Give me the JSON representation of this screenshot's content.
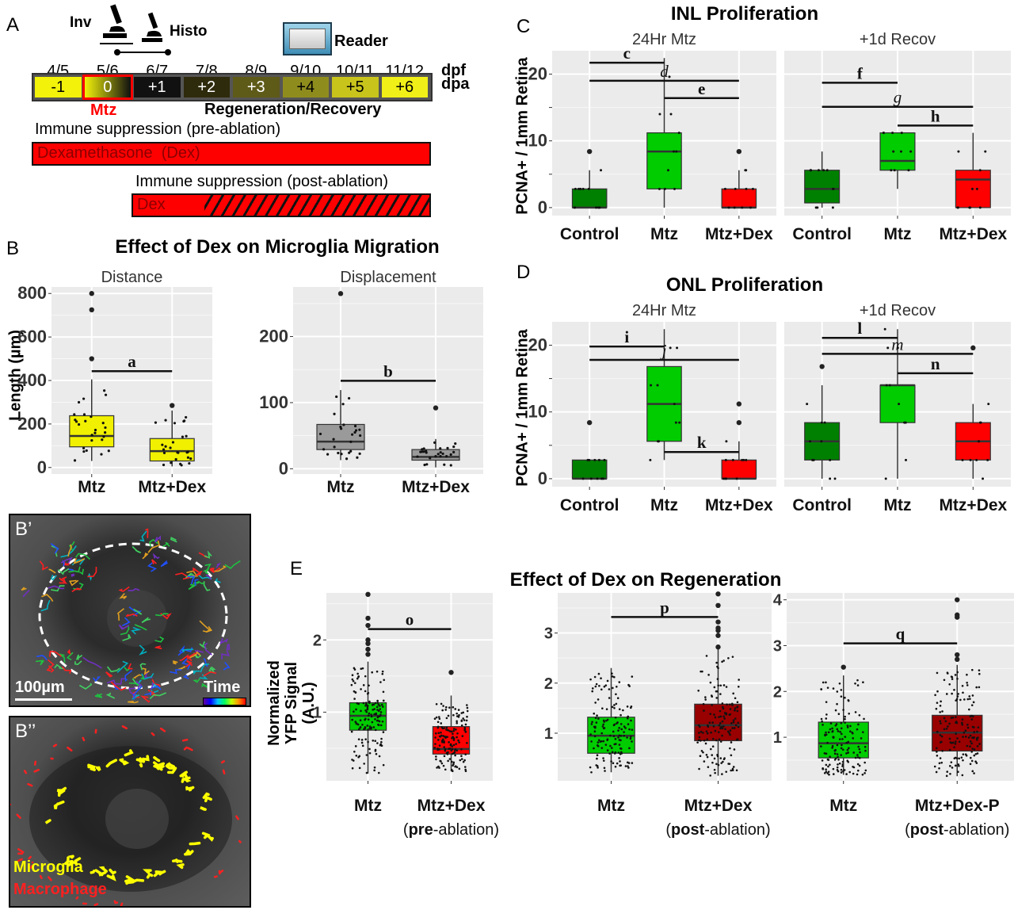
{
  "panel_labels": {
    "A": "A",
    "B": "B",
    "C": "C",
    "D": "D",
    "E": "E",
    "B1": "B’",
    "B2": "B’’"
  },
  "timeline": {
    "inv_label": "Inv",
    "histo_label": "Histo",
    "reader_label": "Reader",
    "dpf_label": "dpf",
    "dpa_label": "dpa",
    "dpf": [
      "4/5",
      "5/6",
      "6/7",
      "7/8",
      "8/9",
      "9/10",
      "10/11",
      "11/12"
    ],
    "dpa": [
      "-1",
      "0",
      "+1",
      "+2",
      "+3",
      "+4",
      "+5",
      "+6"
    ],
    "dpa_colors": [
      "#f2f20a",
      "#8f8a1a",
      "#111111",
      "#2e2a0c",
      "#5e5a18",
      "#8f8c1e",
      "#c8c41c",
      "#f0ef18"
    ],
    "dpa_text_colors": [
      "#000",
      "#fff",
      "#fff",
      "#fff",
      "#fff",
      "#000",
      "#000",
      "#000"
    ],
    "mtz_label": "Mtz",
    "regen_label": "Regeneration/Recovery",
    "pre_label": "Immune suppression (pre-ablation)",
    "pre_bar": "Dexamethasone  (Dex)",
    "post_label": "Immune suppression (post-ablation)",
    "post_bar": "Dex",
    "accent": "#ff0000"
  },
  "micro": {
    "scale_label": "100µm",
    "time_label": "Time",
    "microglia_label": "Microglia",
    "macrophage_label": "Macrophage"
  },
  "chart_data": [
    {
      "id": "B-distance",
      "type": "box",
      "title": "Effect of Dex on Microglia Migration",
      "facet": "Distance",
      "ylabel": "Length (µm)",
      "ylim": [
        -30,
        830
      ],
      "yticks": [
        0,
        200,
        400,
        600,
        800
      ],
      "categories": [
        "Mtz",
        "Mtz+Dex"
      ],
      "series": [
        {
          "name": "Mtz",
          "color": "#f0f000",
          "q1": 95,
          "median": 145,
          "q3": 238,
          "whisker_low": 30,
          "whisker_high": 405,
          "outliers": [
            500,
            725,
            800
          ]
        },
        {
          "name": "Mtz+Dex",
          "color": "#f0f000",
          "q1": 30,
          "median": 75,
          "q3": 133,
          "whisker_low": 5,
          "whisker_high": 262,
          "outliers": [
            285
          ]
        }
      ],
      "significance": [
        {
          "label": "a",
          "from": 0,
          "to": 1,
          "y": 443
        }
      ]
    },
    {
      "id": "B-displacement",
      "type": "box",
      "facet": "Displacement",
      "ylim": [
        -8,
        275
      ],
      "yticks": [
        0,
        100,
        200
      ],
      "categories": [
        "Mtz",
        "Mtz+Dex"
      ],
      "series": [
        {
          "name": "Mtz",
          "color": "#9a9a9a",
          "q1": 29,
          "median": 41,
          "q3": 67,
          "whisker_low": 13,
          "whisker_high": 119,
          "outliers": [
            265
          ]
        },
        {
          "name": "Mtz+Dex",
          "color": "#9a9a9a",
          "q1": 13,
          "median": 18,
          "q3": 29,
          "whisker_low": 2,
          "whisker_high": 45,
          "outliers": [
            92
          ]
        }
      ],
      "significance": [
        {
          "label": "b",
          "from": 0,
          "to": 1,
          "y": 133
        }
      ]
    },
    {
      "id": "C",
      "type": "box",
      "title": "INL Proliferation",
      "ylabel": "PCNA+ / 1mm Retina",
      "ylim": [
        -1.2,
        23.5
      ],
      "yticks": [
        0,
        10,
        20
      ],
      "facets": [
        {
          "name": "24Hr Mtz",
          "categories": [
            "Control",
            "Mtz",
            "Mtz+Dex"
          ],
          "series": [
            {
              "name": "Control",
              "color": "#008000",
              "q1": 0,
              "median": 0,
              "q3": 2.8,
              "whisker_low": 0,
              "whisker_high": 5.6,
              "outliers": [
                8.4
              ]
            },
            {
              "name": "Mtz",
              "color": "#00cc00",
              "q1": 2.8,
              "median": 8.4,
              "q3": 11.2,
              "whisker_low": 0,
              "whisker_high": 22.4,
              "outliers": []
            },
            {
              "name": "Mtz+Dex",
              "color": "#ff0000",
              "q1": 0,
              "median": 0,
              "q3": 2.8,
              "whisker_low": 0,
              "whisker_high": 5.6,
              "outliers": [
                8.4
              ]
            }
          ],
          "significance": [
            {
              "label": "c",
              "from": 0,
              "to": 1,
              "y": 21.7,
              "italic": false
            },
            {
              "label": "d",
              "from": 0,
              "to": 2,
              "y": 19,
              "italic": true
            },
            {
              "label": "e",
              "from": 1,
              "to": 2,
              "y": 16.4,
              "italic": false
            }
          ]
        },
        {
          "name": "+1d Recov",
          "categories": [
            "Control",
            "Mtz",
            "Mtz+Dex"
          ],
          "series": [
            {
              "name": "Control",
              "color": "#008000",
              "q1": 0.7,
              "median": 2.8,
              "q3": 5.6,
              "whisker_low": 0,
              "whisker_high": 8.4,
              "outliers": []
            },
            {
              "name": "Mtz",
              "color": "#00cc00",
              "q1": 5.6,
              "median": 7,
              "q3": 11.2,
              "whisker_low": 2.8,
              "whisker_high": 11.2,
              "outliers": []
            },
            {
              "name": "Mtz+Dex",
              "color": "#ff0000",
              "q1": 0,
              "median": 4.2,
              "q3": 5.6,
              "whisker_low": 0,
              "whisker_high": 11.2,
              "outliers": []
            }
          ],
          "significance": [
            {
              "label": "f",
              "from": 0,
              "to": 1,
              "y": 18.7,
              "italic": false
            },
            {
              "label": "g",
              "from": 0,
              "to": 2,
              "y": 15.1,
              "italic": true
            },
            {
              "label": "h",
              "from": 1,
              "to": 2,
              "y": 12.3,
              "italic": false
            }
          ]
        }
      ]
    },
    {
      "id": "D",
      "type": "box",
      "title": "ONL Proliferation",
      "ylabel": "PCNA+ / 1mm Retina",
      "ylim": [
        -1.2,
        23.5
      ],
      "yticks": [
        0,
        10,
        20
      ],
      "facets": [
        {
          "name": "24Hr Mtz",
          "categories": [
            "Control",
            "Mtz",
            "Mtz+Dex"
          ],
          "series": [
            {
              "name": "Control",
              "color": "#008000",
              "q1": 0,
              "median": 0,
              "q3": 2.8,
              "whisker_low": 0,
              "whisker_high": 2.8,
              "outliers": [
                8.4
              ]
            },
            {
              "name": "Mtz",
              "color": "#00cc00",
              "q1": 5.6,
              "median": 11.2,
              "q3": 16.8,
              "whisker_low": 2.8,
              "whisker_high": 22.4,
              "outliers": []
            },
            {
              "name": "Mtz+Dex",
              "color": "#ff0000",
              "q1": 0,
              "median": 0,
              "q3": 2.8,
              "whisker_low": 0,
              "whisker_high": 5.6,
              "outliers": [
                8.4,
                11.2
              ]
            }
          ],
          "significance": [
            {
              "label": "i",
              "from": 0,
              "to": 1,
              "y": 19.8,
              "italic": false
            },
            {
              "label": "j",
              "from": 0,
              "to": 2,
              "y": 17.8,
              "italic": true
            },
            {
              "label": "k",
              "from": 1,
              "to": 2,
              "y": 4.0,
              "italic": false
            }
          ]
        },
        {
          "name": "+1d Recov",
          "categories": [
            "Control",
            "Mtz",
            "Mtz+Dex"
          ],
          "series": [
            {
              "name": "Control",
              "color": "#008000",
              "q1": 2.8,
              "median": 5.6,
              "q3": 8.4,
              "whisker_low": 0,
              "whisker_high": 14,
              "outliers": [
                16.8
              ]
            },
            {
              "name": "Mtz",
              "color": "#00cc00",
              "q1": 8.4,
              "median": 14,
              "q3": 14,
              "whisker_low": 0,
              "whisker_high": 22.4,
              "outliers": []
            },
            {
              "name": "Mtz+Dex",
              "color": "#ff0000",
              "q1": 2.8,
              "median": 5.6,
              "q3": 8.4,
              "whisker_low": 0,
              "whisker_high": 11.2,
              "outliers": [
                19.6
              ]
            }
          ],
          "significance": [
            {
              "label": "l",
              "from": 0,
              "to": 1,
              "y": 21.1,
              "italic": false
            },
            {
              "label": "m",
              "from": 0,
              "to": 2,
              "y": 18.7,
              "italic": true
            },
            {
              "label": "n",
              "from": 1,
              "to": 2,
              "y": 15.8,
              "italic": false
            }
          ]
        }
      ]
    },
    {
      "id": "E",
      "type": "box",
      "title": "Effect of Dex on Regeneration",
      "ylabel": "Normalized YFP Signal (A.U.)",
      "facets": [
        {
          "categories": [
            "Mtz",
            "Mtz+Dex"
          ],
          "subtitle": [
            "",
            "(pre-ablation)"
          ],
          "ylim": [
            0.05,
            2.65
          ],
          "yticks": [
            1,
            2
          ],
          "series": [
            {
              "name": "Mtz",
              "color": "#00cc00",
              "q1": 0.75,
              "median": 0.95,
              "q3": 1.13,
              "whisker_low": 0.15,
              "whisker_high": 1.7,
              "outliers": [
                1.8,
                1.87,
                1.95,
                2.0,
                2.2,
                2.3,
                2.63
              ]
            },
            {
              "name": "Mtz+Dex",
              "color": "#ff0000",
              "q1": 0.42,
              "median": 0.49,
              "q3": 0.8,
              "whisker_low": 0.18,
              "whisker_high": 1.23,
              "outliers": [
                1.55
              ]
            }
          ],
          "significance": [
            {
              "label": "o",
              "from": 0,
              "to": 1,
              "y": 2.15
            }
          ]
        },
        {
          "categories": [
            "Mtz",
            "Mtz+Dex"
          ],
          "subtitle": [
            "",
            "(post-ablation)"
          ],
          "ylim": [
            0.05,
            3.8
          ],
          "yticks": [
            1,
            2,
            3
          ],
          "series": [
            {
              "name": "Mtz",
              "color": "#00cc00",
              "q1": 0.6,
              "median": 0.95,
              "q3": 1.32,
              "whisker_low": 0.22,
              "whisker_high": 2.3,
              "outliers": []
            },
            {
              "name": "Mtz+Dex",
              "color": "#990000",
              "q1": 0.85,
              "median": 1.16,
              "q3": 1.58,
              "whisker_low": 0.15,
              "whisker_high": 2.7,
              "outliers": [
                2.72,
                2.95,
                3.05,
                3.1,
                3.22,
                3.55,
                3.78
              ]
            }
          ],
          "significance": [
            {
              "label": "p",
              "from": 0,
              "to": 1,
              "y": 3.32
            }
          ]
        },
        {
          "categories": [
            "Mtz",
            "Mtz+Dex-P"
          ],
          "subtitle": [
            "",
            "(post-ablation)"
          ],
          "ylim": [
            0.05,
            4.15
          ],
          "yticks": [
            1,
            2,
            3,
            4
          ],
          "series": [
            {
              "name": "Mtz",
              "color": "#00cc00",
              "q1": 0.55,
              "median": 0.87,
              "q3": 1.33,
              "whisker_low": 0.18,
              "whisker_high": 2.35,
              "outliers": [
                2.53
              ]
            },
            {
              "name": "Mtz+Dex-P",
              "color": "#990000",
              "q1": 0.7,
              "median": 1.1,
              "q3": 1.48,
              "whisker_low": 0.15,
              "whisker_high": 2.58,
              "outliers": [
                2.7,
                2.8,
                3.62,
                3.67,
                4.0
              ]
            }
          ],
          "significance": [
            {
              "label": "q",
              "from": 0,
              "to": 1,
              "y": 3.05
            }
          ]
        }
      ]
    }
  ],
  "sub_bold": {
    "pre": "pre",
    "post": "post"
  },
  "sub_rest": {
    "ablation": "-ablation)",
    "open": "("
  }
}
